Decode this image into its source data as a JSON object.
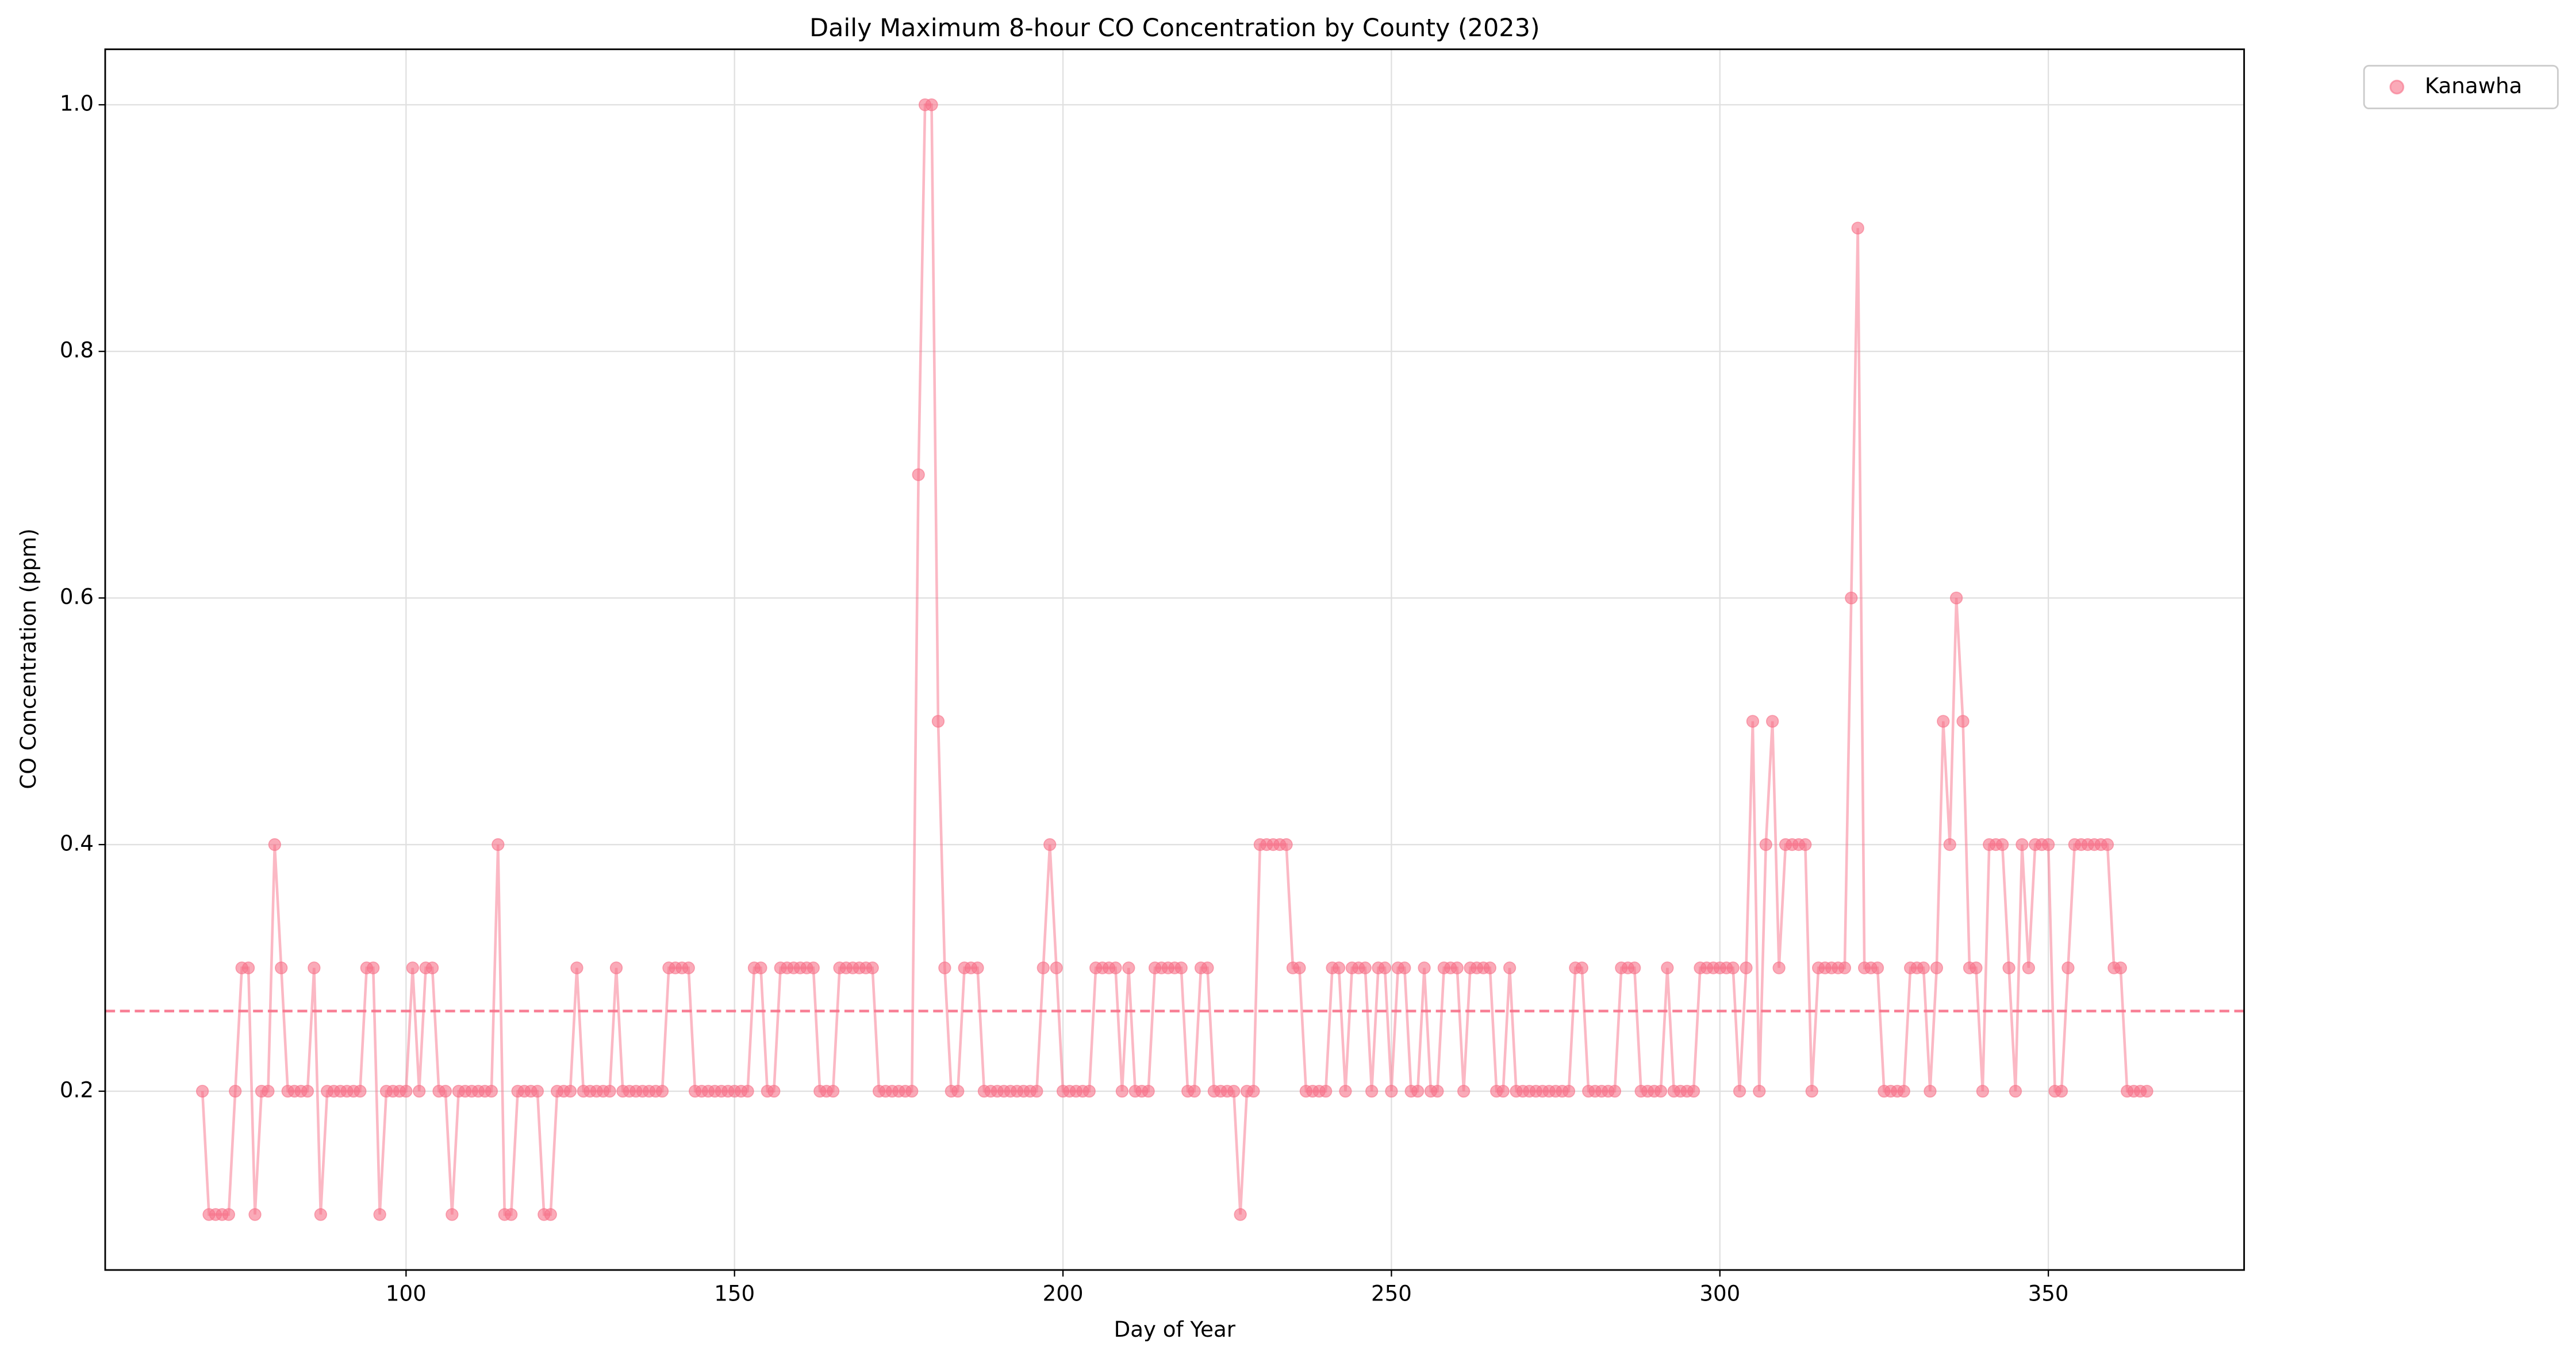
{
  "chart_data": {
    "type": "line",
    "title": "Daily Maximum 8-hour CO Concentration by County (2023)",
    "x_label": "Day of Year",
    "y_label": "CO Concentration (ppm)",
    "x": [
      69,
      70,
      71,
      72,
      73,
      74,
      75,
      76,
      77,
      78,
      79,
      80,
      81,
      82,
      83,
      84,
      85,
      86,
      87,
      88,
      89,
      90,
      91,
      92,
      93,
      94,
      95,
      96,
      97,
      98,
      99,
      100,
      101,
      102,
      103,
      104,
      105,
      106,
      107,
      108,
      109,
      110,
      111,
      112,
      113,
      114,
      115,
      116,
      117,
      118,
      119,
      120,
      121,
      122,
      123,
      124,
      125,
      126,
      127,
      128,
      129,
      130,
      131,
      132,
      133,
      134,
      135,
      136,
      137,
      138,
      139,
      140,
      141,
      142,
      143,
      144,
      145,
      146,
      147,
      148,
      149,
      150,
      151,
      152,
      153,
      154,
      155,
      156,
      157,
      158,
      159,
      160,
      161,
      162,
      163,
      164,
      165,
      166,
      167,
      168,
      169,
      170,
      171,
      172,
      173,
      174,
      175,
      176,
      177,
      178,
      179,
      180,
      181,
      182,
      183,
      184,
      185,
      186,
      187,
      188,
      189,
      190,
      191,
      192,
      193,
      194,
      195,
      196,
      197,
      198,
      199,
      200,
      201,
      202,
      203,
      204,
      205,
      206,
      207,
      208,
      209,
      210,
      211,
      212,
      213,
      214,
      215,
      216,
      217,
      218,
      219,
      220,
      221,
      222,
      223,
      224,
      225,
      226,
      227,
      228,
      229,
      230,
      231,
      232,
      233,
      234,
      235,
      236,
      237,
      238,
      239,
      240,
      241,
      242,
      243,
      244,
      245,
      246,
      247,
      248,
      249,
      250,
      251,
      252,
      253,
      254,
      255,
      256,
      257,
      258,
      259,
      260,
      261,
      262,
      263,
      264,
      265,
      266,
      267,
      268,
      269,
      270,
      271,
      272,
      273,
      274,
      275,
      276,
      277,
      278,
      279,
      280,
      281,
      282,
      283,
      284,
      285,
      286,
      287,
      288,
      289,
      290,
      291,
      292,
      293,
      294,
      295,
      296,
      297,
      298,
      299,
      300,
      301,
      302,
      303,
      304,
      305,
      306,
      307,
      308,
      309,
      310,
      311,
      312,
      313,
      314,
      315,
      316,
      317,
      318,
      319,
      320,
      321,
      322,
      323,
      324,
      325,
      326,
      327,
      328,
      329,
      330,
      331,
      332,
      333,
      334,
      335,
      336,
      337,
      338,
      339,
      340,
      341,
      342,
      343,
      344,
      345,
      346,
      347,
      348,
      349,
      350,
      351,
      352,
      353,
      354,
      355,
      356,
      357,
      358,
      359,
      360,
      361,
      362,
      363,
      364,
      365
    ],
    "series": [
      {
        "name": "Kanawha",
        "color": "#f77189",
        "values": [
          0.2,
          0.1,
          0.1,
          0.1,
          0.1,
          0.2,
          0.3,
          0.3,
          0.1,
          0.2,
          0.2,
          0.4,
          0.3,
          0.2,
          0.2,
          0.2,
          0.2,
          0.3,
          0.1,
          0.2,
          0.2,
          0.2,
          0.2,
          0.2,
          0.2,
          0.3,
          0.3,
          0.1,
          0.2,
          0.2,
          0.2,
          0.2,
          0.3,
          0.2,
          0.3,
          0.3,
          0.2,
          0.2,
          0.1,
          0.2,
          0.2,
          0.2,
          0.2,
          0.2,
          0.2,
          0.4,
          0.1,
          0.1,
          0.2,
          0.2,
          0.2,
          0.2,
          0.1,
          0.1,
          0.2,
          0.2,
          0.2,
          0.3,
          0.2,
          0.2,
          0.2,
          0.2,
          0.2,
          0.3,
          0.2,
          0.2,
          0.2,
          0.2,
          0.2,
          0.2,
          0.2,
          0.3,
          0.3,
          0.3,
          0.3,
          0.2,
          0.2,
          0.2,
          0.2,
          0.2,
          0.2,
          0.2,
          0.2,
          0.2,
          0.3,
          0.3,
          0.2,
          0.2,
          0.3,
          0.3,
          0.3,
          0.3,
          0.3,
          0.3,
          0.2,
          0.2,
          0.2,
          0.3,
          0.3,
          0.3,
          0.3,
          0.3,
          0.3,
          0.2,
          0.2,
          0.2,
          0.2,
          0.2,
          0.2,
          0.7,
          1.0,
          1.0,
          0.5,
          0.3,
          0.2,
          0.2,
          0.3,
          0.3,
          0.3,
          0.2,
          0.2,
          0.2,
          0.2,
          0.2,
          0.2,
          0.2,
          0.2,
          0.2,
          0.3,
          0.4,
          0.3,
          0.2,
          0.2,
          0.2,
          0.2,
          0.2,
          0.3,
          0.3,
          0.3,
          0.3,
          0.2,
          0.3,
          0.2,
          0.2,
          0.2,
          0.3,
          0.3,
          0.3,
          0.3,
          0.3,
          0.2,
          0.2,
          0.3,
          0.3,
          0.2,
          0.2,
          0.2,
          0.2,
          0.1,
          0.2,
          0.2,
          0.4,
          0.4,
          0.4,
          0.4,
          0.4,
          0.3,
          0.3,
          0.2,
          0.2,
          0.2,
          0.2,
          0.3,
          0.3,
          0.2,
          0.3,
          0.3,
          0.3,
          0.2,
          0.3,
          0.3,
          0.2,
          0.3,
          0.3,
          0.2,
          0.2,
          0.3,
          0.2,
          0.2,
          0.3,
          0.3,
          0.3,
          0.2,
          0.3,
          0.3,
          0.3,
          0.3,
          0.2,
          0.2,
          0.3,
          0.2,
          0.2,
          0.2,
          0.2,
          0.2,
          0.2,
          0.2,
          0.2,
          0.2,
          0.3,
          0.3,
          0.2,
          0.2,
          0.2,
          0.2,
          0.2,
          0.3,
          0.3,
          0.3,
          0.2,
          0.2,
          0.2,
          0.2,
          0.3,
          0.2,
          0.2,
          0.2,
          0.2,
          0.3,
          0.3,
          0.3,
          0.3,
          0.3,
          0.3,
          0.2,
          0.3,
          0.5,
          0.2,
          0.4,
          0.5,
          0.3,
          0.4,
          0.4,
          0.4,
          0.4,
          0.2,
          0.3,
          0.3,
          0.3,
          0.3,
          0.3,
          0.6,
          0.9,
          0.3,
          0.3,
          0.3,
          0.2,
          0.2,
          0.2,
          0.2,
          0.3,
          0.3,
          0.3,
          0.2,
          0.3,
          0.5,
          0.4,
          0.6,
          0.5,
          0.3,
          0.3,
          0.2,
          0.4,
          0.4,
          0.4,
          0.3,
          0.2,
          0.4,
          0.3,
          0.4,
          0.4,
          0.4,
          0.2,
          0.2,
          0.3,
          0.4,
          0.4,
          0.4,
          0.4,
          0.4,
          0.4,
          0.3,
          0.3,
          0.2,
          0.2,
          0.2,
          0.2
        ]
      }
    ],
    "mean_line": {
      "value": 0.265,
      "color": "#f77189"
    },
    "xlim": [
      54.2,
      379.8
    ],
    "ylim": [
      0.055,
      1.045
    ],
    "xticks": [
      100,
      150,
      200,
      250,
      300,
      350
    ],
    "yticks": [
      0.2,
      0.4,
      0.6,
      0.8,
      {
        "value": 1,
        "label": "1.0"
      }
    ],
    "grid": true,
    "legend": "outside-upper-right"
  }
}
